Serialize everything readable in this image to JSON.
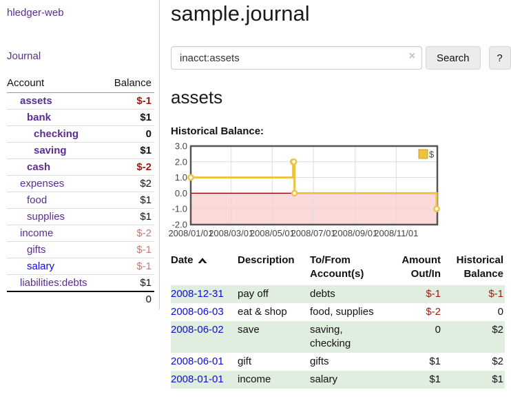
{
  "app": {
    "brand": "hledger-web",
    "nav_journal": "Journal"
  },
  "sidebar": {
    "columns": [
      "Account",
      "Balance"
    ],
    "rows": [
      {
        "account": "assets",
        "balance": "$-1",
        "indent": 1,
        "bold": true,
        "balance_class": "neg-strong"
      },
      {
        "account": "bank",
        "balance": "$1",
        "indent": 2,
        "bold": true,
        "balance_class": "pos"
      },
      {
        "account": "checking",
        "balance": "0",
        "indent": 3,
        "bold": true,
        "balance_class": "pos"
      },
      {
        "account": "saving",
        "balance": "$1",
        "indent": 3,
        "bold": true,
        "balance_class": "pos"
      },
      {
        "account": "cash",
        "balance": "$-2",
        "indent": 2,
        "bold": true,
        "balance_class": "neg-strong"
      },
      {
        "account": "expenses",
        "balance": "$2",
        "indent": 1,
        "bold": false,
        "balance_class": "pos"
      },
      {
        "account": "food",
        "balance": "$1",
        "indent": 2,
        "bold": false,
        "balance_class": "pos"
      },
      {
        "account": "supplies",
        "balance": "$1",
        "indent": 2,
        "bold": false,
        "balance_class": "pos"
      },
      {
        "account": "income",
        "balance": "$-2",
        "indent": 1,
        "bold": false,
        "balance_class": "neg-soft"
      },
      {
        "account": "gifts",
        "balance": "$-1",
        "indent": 2,
        "bold": false,
        "balance_class": "neg-soft"
      },
      {
        "account": "salary",
        "balance": "$-1",
        "indent": 2,
        "bold": false,
        "balance_class": "neg-soft",
        "link_color": "blue"
      },
      {
        "account": "liabilities:debts",
        "balance": "$1",
        "indent": 1,
        "bold": false,
        "balance_class": "pos"
      }
    ],
    "total": "0"
  },
  "header": {
    "title": "sample.journal"
  },
  "search": {
    "value": "inacct:assets",
    "clear_icon": "×",
    "button": "Search",
    "help_button": "?"
  },
  "main": {
    "heading": "assets",
    "chart_title": "Historical Balance:"
  },
  "chart_data": {
    "type": "line",
    "step": true,
    "title": "Historical Balance:",
    "series": [
      {
        "name": "$",
        "color": "#edc240",
        "points": [
          [
            "2008-01-01",
            1
          ],
          [
            "2008-06-01",
            2
          ],
          [
            "2008-06-02",
            2
          ],
          [
            "2008-06-03",
            0
          ],
          [
            "2008-12-31",
            -1
          ]
        ]
      }
    ],
    "x_range": [
      "2008-01-01",
      "2009-01-01"
    ],
    "x_ticks": [
      "2008/01/01",
      "2008/03/01",
      "2008/05/01",
      "2008/07/01",
      "2008/09/01",
      "2008/11/01"
    ],
    "y_ticks": [
      "3.0",
      "2.0",
      "1.0",
      "0.0",
      "-1.0",
      "-2.0"
    ],
    "ylim": [
      -2,
      3
    ],
    "grid": true,
    "legend": {
      "label": "$",
      "position": "top-right"
    },
    "colors": {
      "negative_region": "#fcdada",
      "zero_line": "#8b0000",
      "grid": "#dddddd",
      "border": "#545454",
      "tick_text": "#444444"
    }
  },
  "register": {
    "columns": [
      "Date",
      "Description",
      "To/From Account(s)",
      "Amount Out/In",
      "Historical Balance"
    ],
    "rows": [
      {
        "date": "2008-12-31",
        "description": "pay off",
        "accounts": "debts",
        "amount": "$-1",
        "amount_neg": true,
        "balance": "$-1",
        "balance_neg": true,
        "shaded": true
      },
      {
        "date": "2008-06-03",
        "description": "eat & shop",
        "accounts": "food, supplies",
        "amount": "$-2",
        "amount_neg": true,
        "balance": "0",
        "balance_neg": false,
        "shaded": false
      },
      {
        "date": "2008-06-02",
        "description": "save",
        "accounts": "saving, checking",
        "amount": "0",
        "amount_neg": false,
        "balance": "$2",
        "balance_neg": false,
        "shaded": true
      },
      {
        "date": "2008-06-01",
        "description": "gift",
        "accounts": "gifts",
        "amount": "$1",
        "amount_neg": false,
        "balance": "$2",
        "balance_neg": false,
        "shaded": false
      },
      {
        "date": "2008-01-01",
        "description": "income",
        "accounts": "salary",
        "amount": "$1",
        "amount_neg": false,
        "balance": "$1",
        "balance_neg": false,
        "shaded": true
      }
    ]
  }
}
